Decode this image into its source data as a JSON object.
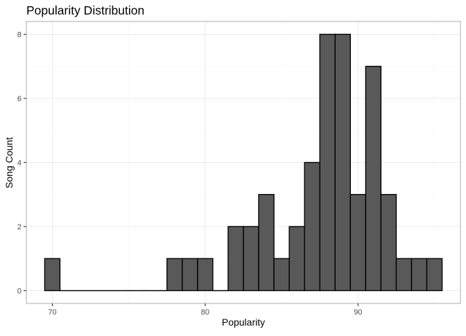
{
  "chart_data": {
    "type": "bar",
    "title": "Popularity Distribution",
    "xlabel": "Popularity",
    "ylabel": "Song Count",
    "bins": [
      {
        "start": 69.5,
        "end": 70.5,
        "count": 1
      },
      {
        "start": 70.5,
        "end": 71.5,
        "count": 0
      },
      {
        "start": 71.5,
        "end": 72.5,
        "count": 0
      },
      {
        "start": 72.5,
        "end": 73.5,
        "count": 0
      },
      {
        "start": 73.5,
        "end": 74.5,
        "count": 0
      },
      {
        "start": 74.5,
        "end": 75.5,
        "count": 0
      },
      {
        "start": 75.5,
        "end": 76.5,
        "count": 0
      },
      {
        "start": 76.5,
        "end": 77.5,
        "count": 0
      },
      {
        "start": 77.5,
        "end": 78.5,
        "count": 1
      },
      {
        "start": 78.5,
        "end": 79.5,
        "count": 1
      },
      {
        "start": 79.5,
        "end": 80.5,
        "count": 1
      },
      {
        "start": 80.5,
        "end": 81.5,
        "count": 0
      },
      {
        "start": 81.5,
        "end": 82.5,
        "count": 2
      },
      {
        "start": 82.5,
        "end": 83.5,
        "count": 2
      },
      {
        "start": 83.5,
        "end": 84.5,
        "count": 3
      },
      {
        "start": 84.5,
        "end": 85.5,
        "count": 1
      },
      {
        "start": 85.5,
        "end": 86.5,
        "count": 2
      },
      {
        "start": 86.5,
        "end": 87.5,
        "count": 4
      },
      {
        "start": 87.5,
        "end": 88.5,
        "count": 8
      },
      {
        "start": 88.5,
        "end": 89.5,
        "count": 8
      },
      {
        "start": 89.5,
        "end": 90.5,
        "count": 3
      },
      {
        "start": 90.5,
        "end": 91.5,
        "count": 7
      },
      {
        "start": 91.5,
        "end": 92.5,
        "count": 3
      },
      {
        "start": 92.5,
        "end": 93.5,
        "count": 1
      },
      {
        "start": 93.5,
        "end": 94.5,
        "count": 1
      },
      {
        "start": 94.5,
        "end": 95.5,
        "count": 1
      }
    ],
    "xlim": [
      68.3,
      96.7
    ],
    "ylim": [
      -0.4,
      8.4
    ],
    "x_ticks": [
      70,
      80,
      90
    ],
    "y_ticks": [
      0,
      2,
      4,
      6,
      8
    ],
    "grid": true,
    "legend": "none",
    "colors": {
      "bar_fill": "#595959",
      "bar_stroke": "#000000",
      "grid_major": "#ebebeb",
      "grid_minor": "#f5f5f5",
      "panel_border": "#b3b3b3"
    }
  }
}
